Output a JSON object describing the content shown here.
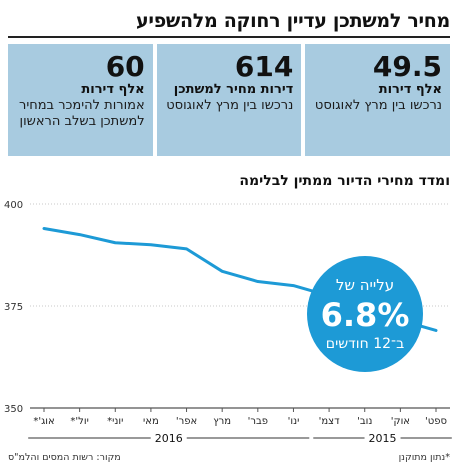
{
  "header": {
    "title": "מחיר למשתכן עדיין רחוקה מלהשפיע"
  },
  "stats": [
    {
      "value": "49.5",
      "unit": "אלף דירות",
      "desc": "נרכשו בין מרץ לאוגוסט"
    },
    {
      "value": "614",
      "unit": "דירות מחיר למשתכן",
      "desc": "נרכשו בין מרץ לאוגוסט"
    },
    {
      "value": "60",
      "unit": "אלף דירות",
      "desc": "אמורות להימכר במחיר למשתכן בשלב הראשון"
    }
  ],
  "chart_title": "ומדד מחירי הדיור ממתין לבלימה",
  "chart_data": {
    "type": "line",
    "categories": [
      "ספט'",
      "אוק'",
      "נוב'",
      "דצמ'",
      "ינו'",
      "פבר'",
      "מרץ",
      "אפר'",
      "מאי",
      "יוני*",
      "יול'*",
      "אוג'*"
    ],
    "values": [
      369,
      371.5,
      374.5,
      377.5,
      380,
      381,
      383.5,
      389,
      390,
      390.5,
      392.5,
      394
    ],
    "ylim": [
      350,
      400
    ],
    "yticks": [
      350,
      375,
      400
    ],
    "x_order": "right-to-left",
    "color": "#1d9ad6",
    "grid": true,
    "year_groups": [
      {
        "label": "2015",
        "from": 0,
        "to": 3
      },
      {
        "label": "2016",
        "from": 4,
        "to": 11
      }
    ]
  },
  "badge": {
    "line1": "עלייה של",
    "value": "6.8%",
    "line2": "ב־12 חודשים",
    "color": "#1d9ad6"
  },
  "footer": {
    "source": "מקור: רשות המסים והלמ\"ס",
    "note": "*נתון מתוקנן"
  }
}
